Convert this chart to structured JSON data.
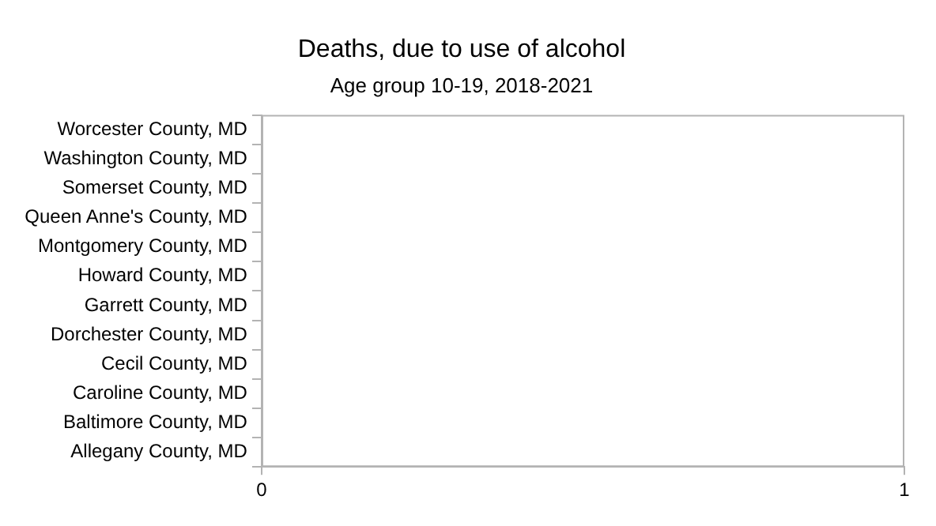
{
  "chart_data": {
    "type": "bar",
    "orientation": "horizontal",
    "title": "Deaths, due to use of alcohol",
    "subtitle": "Age group 10-19, 2018-2021",
    "categories": [
      "Worcester County, MD",
      "Washington County, MD",
      "Somerset County, MD",
      "Queen Anne's County, MD",
      "Montgomery County, MD",
      "Howard County, MD",
      "Garrett County, MD",
      "Dorchester County, MD",
      "Cecil County, MD",
      "Caroline County, MD",
      "Baltimore County, MD",
      "Allegany County, MD"
    ],
    "values": [
      0,
      0,
      0,
      0,
      0,
      0,
      0,
      0,
      0,
      0,
      0,
      0
    ],
    "xlim": [
      0,
      1
    ],
    "xticks": [
      0,
      1
    ],
    "grid": false
  }
}
